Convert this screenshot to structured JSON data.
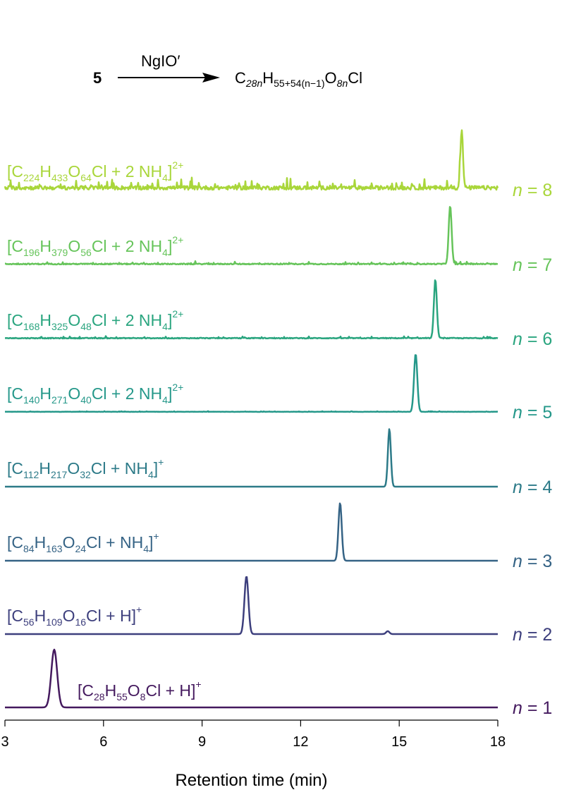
{
  "scheme": {
    "reactant": "5",
    "reagent": "NgIO′",
    "product": {
      "C_sub": "28n",
      "H_sub": "55+54(n−1)",
      "O_sub": "8n",
      "tail": "Cl"
    }
  },
  "chart_data": {
    "type": "line",
    "xlabel": "Retention time (min)",
    "xlim": [
      3,
      18
    ],
    "xticks": [
      3,
      6,
      9,
      12,
      15,
      18
    ],
    "y_unit": "normalized intensity (stacked traces)",
    "series": [
      {
        "n_label": "n = 1",
        "color": "#44195e",
        "ion_parts": [
          [
            "[C",
            ""
          ],
          [
            "28",
            "sub"
          ],
          [
            "H",
            ""
          ],
          [
            "55",
            "sub"
          ],
          [
            "O",
            ""
          ],
          [
            "8",
            "sub"
          ],
          [
            "Cl + H]",
            ""
          ],
          [
            "+",
            "sup"
          ]
        ],
        "peaks": [
          {
            "rt": 4.5,
            "height": 1.0,
            "width": 0.09
          }
        ],
        "noise": 0.0
      },
      {
        "n_label": "n = 2",
        "color": "#3d3f7d",
        "ion_parts": [
          [
            "[C",
            ""
          ],
          [
            "56",
            "sub"
          ],
          [
            "H",
            ""
          ],
          [
            "109",
            "sub"
          ],
          [
            "O",
            ""
          ],
          [
            "16",
            "sub"
          ],
          [
            "Cl + H]",
            ""
          ],
          [
            "+",
            "sup"
          ]
        ],
        "peaks": [
          {
            "rt": 10.35,
            "height": 1.0,
            "width": 0.06
          },
          {
            "rt": 14.65,
            "height": 0.05,
            "width": 0.05
          }
        ],
        "noise": 0.0
      },
      {
        "n_label": "n = 3",
        "color": "#356385",
        "ion_parts": [
          [
            "[C",
            ""
          ],
          [
            "84",
            "sub"
          ],
          [
            "H",
            ""
          ],
          [
            "163",
            "sub"
          ],
          [
            "O",
            ""
          ],
          [
            "24",
            "sub"
          ],
          [
            "Cl + NH",
            ""
          ],
          [
            "4",
            "sub"
          ],
          [
            "]",
            ""
          ],
          [
            "+",
            "sup"
          ]
        ],
        "peaks": [
          {
            "rt": 13.2,
            "height": 1.0,
            "width": 0.05
          }
        ],
        "noise": 0.0
      },
      {
        "n_label": "n = 4",
        "color": "#2c7a88",
        "ion_parts": [
          [
            "[C",
            ""
          ],
          [
            "112",
            "sub"
          ],
          [
            "H",
            ""
          ],
          [
            "217",
            "sub"
          ],
          [
            "O",
            ""
          ],
          [
            "32",
            "sub"
          ],
          [
            "Cl + NH",
            ""
          ],
          [
            "4",
            "sub"
          ],
          [
            "]",
            ""
          ],
          [
            "+",
            "sup"
          ]
        ],
        "peaks": [
          {
            "rt": 14.7,
            "height": 1.0,
            "width": 0.045
          }
        ],
        "noise": 0.0
      },
      {
        "n_label": "n = 5",
        "color": "#25988a",
        "ion_parts": [
          [
            "[C",
            ""
          ],
          [
            "140",
            "sub"
          ],
          [
            "H",
            ""
          ],
          [
            "271",
            "sub"
          ],
          [
            "O",
            ""
          ],
          [
            "40",
            "sub"
          ],
          [
            "Cl + 2 NH",
            ""
          ],
          [
            "4",
            "sub"
          ],
          [
            "]",
            ""
          ],
          [
            "2+",
            "sup"
          ]
        ],
        "peaks": [
          {
            "rt": 15.5,
            "height": 1.0,
            "width": 0.05
          }
        ],
        "noise": 0.01
      },
      {
        "n_label": "n = 6",
        "color": "#2aa57f",
        "ion_parts": [
          [
            "[C",
            ""
          ],
          [
            "168",
            "sub"
          ],
          [
            "H",
            ""
          ],
          [
            "325",
            "sub"
          ],
          [
            "O",
            ""
          ],
          [
            "48",
            "sub"
          ],
          [
            "Cl + 2 NH",
            ""
          ],
          [
            "4",
            "sub"
          ],
          [
            "]",
            ""
          ],
          [
            "2+",
            "sup"
          ]
        ],
        "peaks": [
          {
            "rt": 16.1,
            "height": 1.0,
            "width": 0.045
          }
        ],
        "noise": 0.03
      },
      {
        "n_label": "n = 7",
        "color": "#66c45a",
        "ion_parts": [
          [
            "[C",
            ""
          ],
          [
            "196",
            "sub"
          ],
          [
            "H",
            ""
          ],
          [
            "379",
            "sub"
          ],
          [
            "O",
            ""
          ],
          [
            "56",
            "sub"
          ],
          [
            "Cl + 2 NH",
            ""
          ],
          [
            "4",
            "sub"
          ],
          [
            "]",
            ""
          ],
          [
            "2+",
            "sup"
          ]
        ],
        "peaks": [
          {
            "rt": 16.55,
            "height": 1.0,
            "width": 0.045
          }
        ],
        "noise": 0.04
      },
      {
        "n_label": "n = 8",
        "color": "#a9d63a",
        "ion_parts": [
          [
            "[C",
            ""
          ],
          [
            "224",
            "sub"
          ],
          [
            "H",
            ""
          ],
          [
            "433",
            "sub"
          ],
          [
            "O",
            ""
          ],
          [
            "64",
            "sub"
          ],
          [
            "Cl + 2 NH",
            ""
          ],
          [
            "4",
            "sub"
          ],
          [
            "]",
            ""
          ],
          [
            "2+",
            "sup"
          ]
        ],
        "peaks": [
          {
            "rt": 16.9,
            "height": 1.0,
            "width": 0.04
          }
        ],
        "noise": 0.15
      }
    ]
  }
}
